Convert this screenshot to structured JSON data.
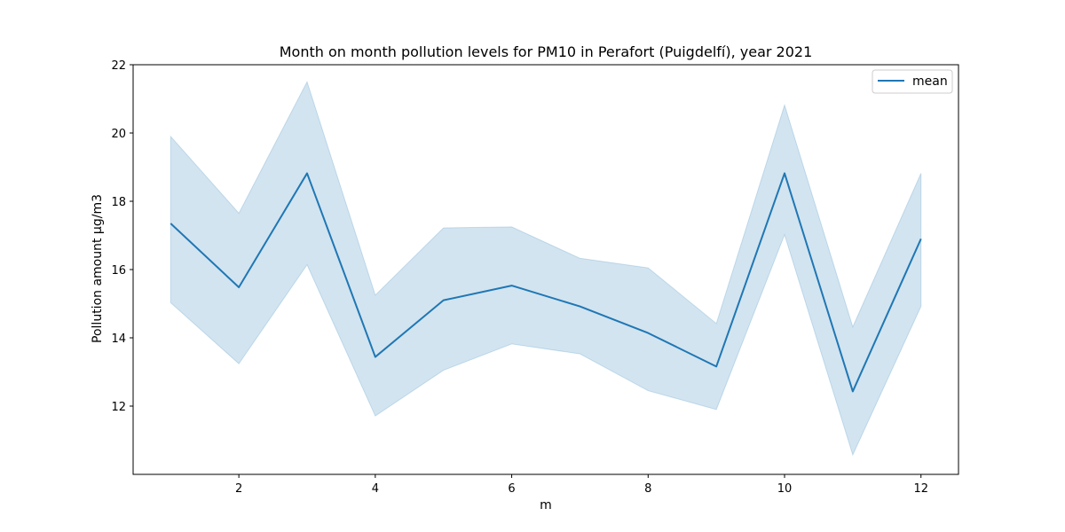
{
  "chart_data": {
    "type": "line",
    "title": "Month on month pollution levels for PM10 in Perafort (Puigdelfí), year 2021",
    "xlabel": "m",
    "ylabel": "Pollution amount μg/m3",
    "xlim": [
      0.45,
      12.55
    ],
    "ylim": [
      10.0,
      22.0
    ],
    "xticks": [
      2,
      4,
      6,
      8,
      10,
      12
    ],
    "yticks": [
      12,
      14,
      16,
      18,
      20,
      22
    ],
    "grid": false,
    "legend_position": "top-right",
    "x": [
      1,
      2,
      3,
      4,
      5,
      6,
      7,
      8,
      9,
      10,
      11,
      12
    ],
    "series": [
      {
        "name": "mean",
        "color": "#1f77b4",
        "values": [
          17.35,
          15.48,
          18.82,
          13.44,
          15.1,
          15.53,
          14.92,
          14.14,
          13.16,
          18.82,
          12.43,
          16.9
        ],
        "ci_upper": [
          19.9,
          17.65,
          21.5,
          15.25,
          17.22,
          17.25,
          16.33,
          16.05,
          14.42,
          20.82,
          14.32,
          18.82
        ],
        "ci_lower": [
          15.03,
          13.24,
          16.14,
          11.71,
          13.05,
          13.82,
          13.53,
          12.45,
          11.9,
          17.02,
          10.57,
          14.92
        ],
        "band_color": "#1f77b4"
      }
    ]
  }
}
